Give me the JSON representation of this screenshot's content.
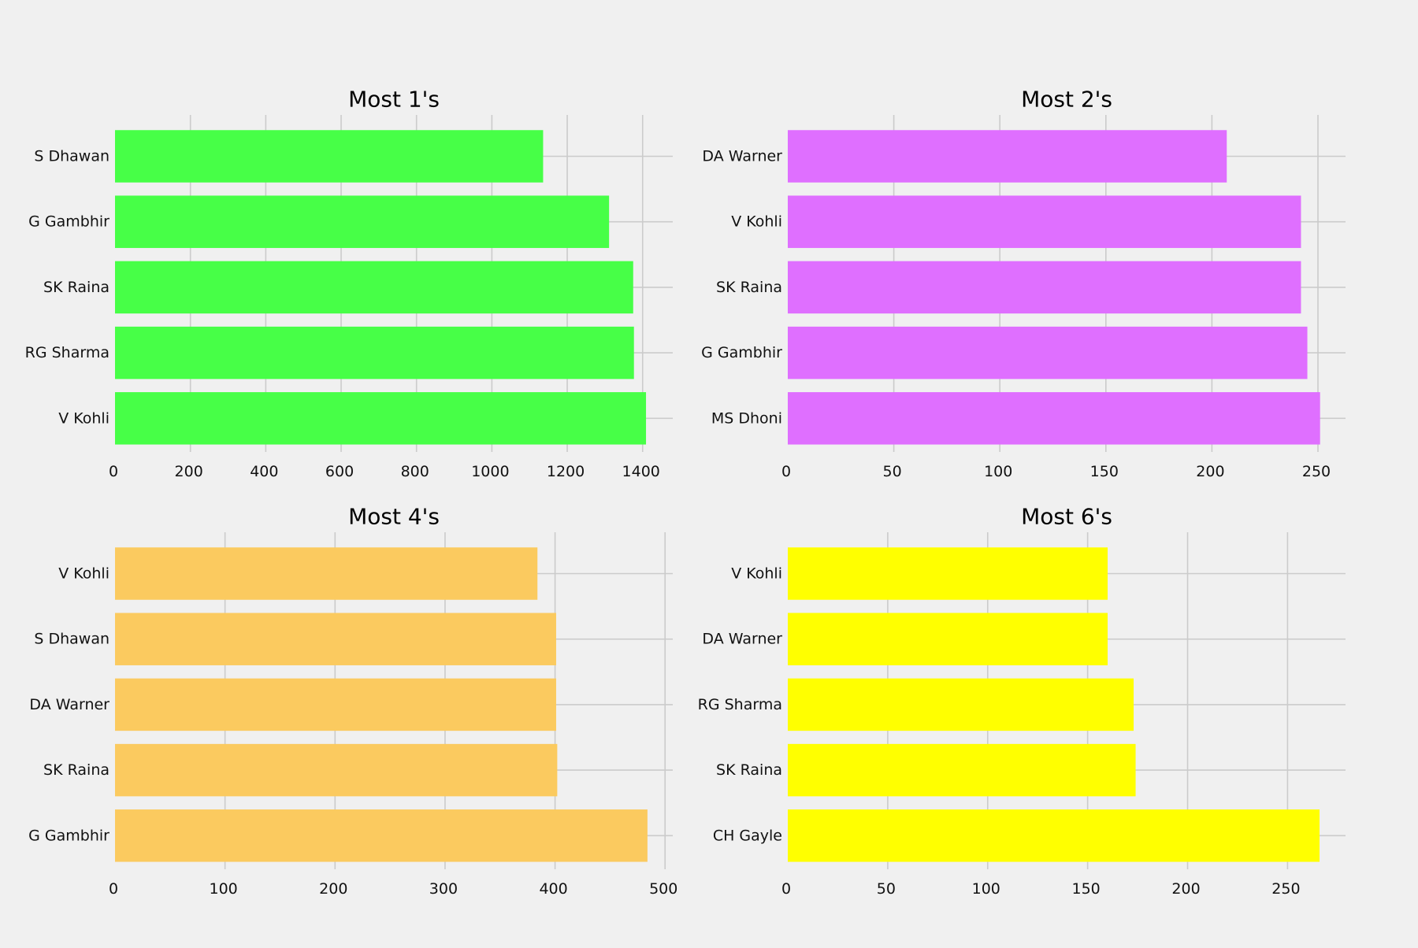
{
  "chart_data": [
    {
      "type": "bar",
      "orientation": "horizontal",
      "title": "Most 1's",
      "categories": [
        "S Dhawan",
        "G Gambhir",
        "SK Raina",
        "RG Sharma",
        "V Kohli"
      ],
      "values": [
        1136,
        1311,
        1375,
        1377,
        1409
      ],
      "xlim": [
        0,
        1480
      ],
      "xticks": [
        0,
        200,
        400,
        600,
        800,
        1000,
        1200,
        1400
      ],
      "color": "#47ff47",
      "grid": true
    },
    {
      "type": "bar",
      "orientation": "horizontal",
      "title": "Most 2's",
      "categories": [
        "DA Warner",
        "V Kohli",
        "SK Raina",
        "G Gambhir",
        "MS Dhoni"
      ],
      "values": [
        207,
        242,
        242,
        245,
        251
      ],
      "xlim": [
        0,
        263
      ],
      "xticks": [
        0,
        50,
        100,
        150,
        200,
        250
      ],
      "color": "#df6fff",
      "grid": true
    },
    {
      "type": "bar",
      "orientation": "horizontal",
      "title": "Most 4's",
      "categories": [
        "V Kohli",
        "S Dhawan",
        "DA Warner",
        "SK Raina",
        "G Gambhir"
      ],
      "values": [
        384,
        401,
        401,
        402,
        484
      ],
      "xlim": [
        0,
        507
      ],
      "xticks": [
        0,
        100,
        200,
        300,
        400,
        500
      ],
      "color": "#fbca5f",
      "grid": true
    },
    {
      "type": "bar",
      "orientation": "horizontal",
      "title": "Most 6's",
      "categories": [
        "V Kohli",
        "DA Warner",
        "RG Sharma",
        "SK Raina",
        "CH Gayle"
      ],
      "values": [
        160,
        160,
        173,
        174,
        266
      ],
      "xlim": [
        0,
        279
      ],
      "xticks": [
        0,
        50,
        100,
        150,
        200,
        250
      ],
      "color": "#ffff00",
      "grid": true
    }
  ]
}
